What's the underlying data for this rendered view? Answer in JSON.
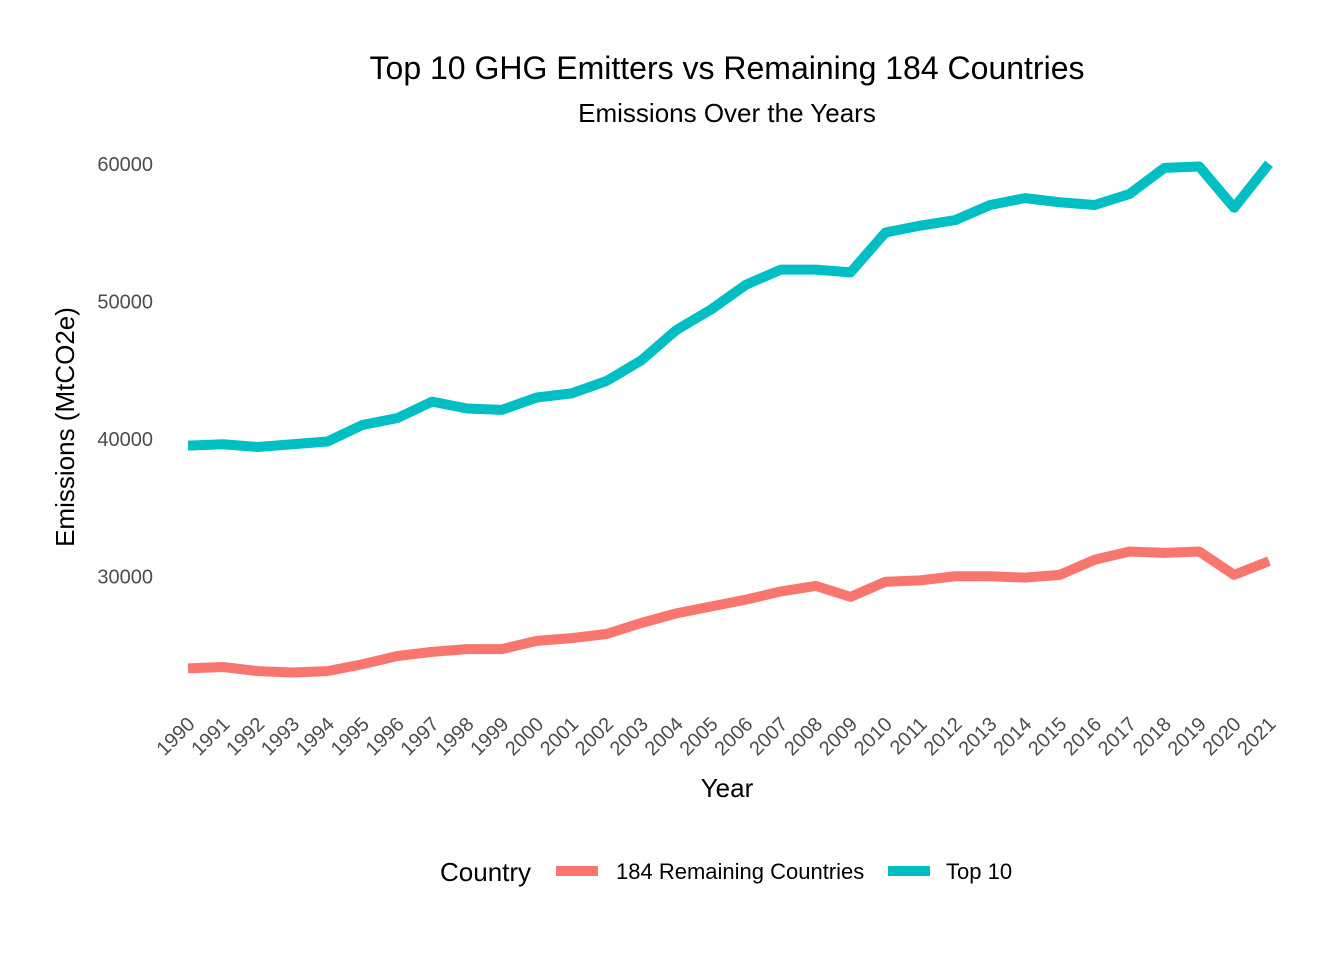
{
  "chart_data": {
    "type": "line",
    "title": "Top 10 GHG Emitters vs Remaining 184 Countries",
    "subtitle": "Emissions Over the Years",
    "xlabel": "Year",
    "ylabel": "Emissions (MtCO2e)",
    "ylim": [
      21000,
      61000
    ],
    "yticks": [
      30000,
      40000,
      50000,
      60000
    ],
    "grid": false,
    "legend": {
      "title": "Country",
      "placement": "bottom"
    },
    "x": [
      1990,
      1991,
      1992,
      1993,
      1994,
      1995,
      1996,
      1997,
      1998,
      1999,
      2000,
      2001,
      2002,
      2003,
      2004,
      2005,
      2006,
      2007,
      2008,
      2009,
      2010,
      2011,
      2012,
      2013,
      2014,
      2015,
      2016,
      2017,
      2018,
      2019,
      2020,
      2021
    ],
    "series": [
      {
        "name": "184 Remaining Countries",
        "color": "#F8766D",
        "values": [
          23300,
          23400,
          23100,
          23000,
          23100,
          23600,
          24200,
          24500,
          24700,
          24700,
          25300,
          25500,
          25800,
          26600,
          27300,
          27800,
          28300,
          28900,
          29300,
          28500,
          29600,
          29700,
          30000,
          30000,
          29900,
          30100,
          31200,
          31800,
          31700,
          31800,
          30100,
          31100
        ]
      },
      {
        "name": "Top 10",
        "color": "#00BFC4",
        "values": [
          39500,
          39600,
          39400,
          39600,
          39800,
          41000,
          41500,
          42700,
          42200,
          42100,
          43000,
          43300,
          44200,
          45700,
          47900,
          49400,
          51200,
          52300,
          52300,
          52100,
          55000,
          55500,
          55900,
          57000,
          57500,
          57200,
          57000,
          57800,
          59700,
          59800,
          56800,
          60000
        ]
      }
    ]
  }
}
